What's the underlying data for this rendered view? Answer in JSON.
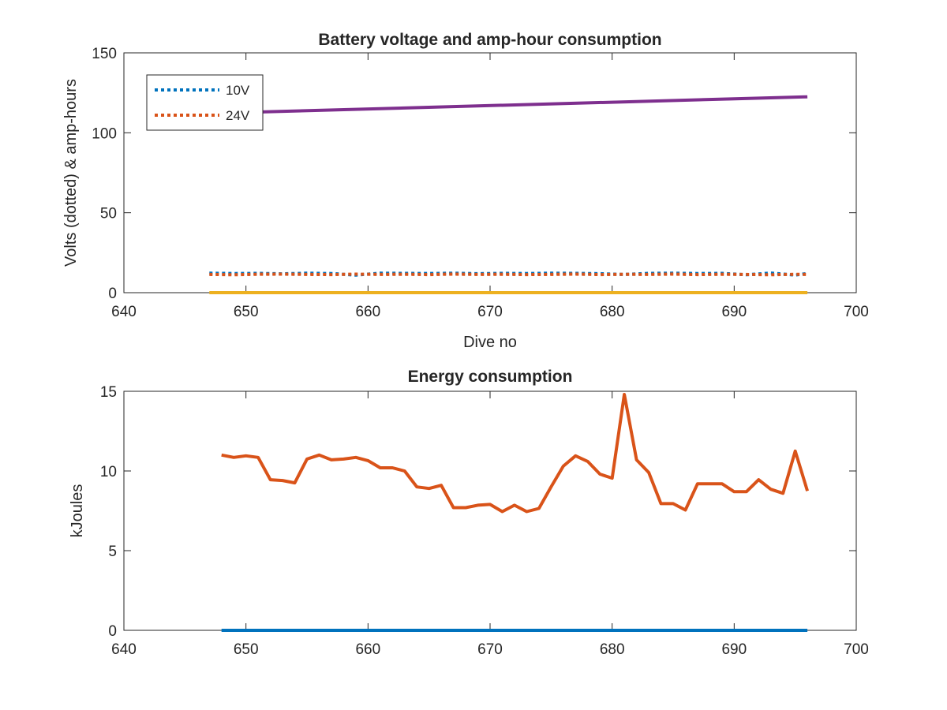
{
  "chart_data": [
    {
      "type": "line",
      "title": "Battery voltage and amp-hour consumption",
      "xlabel": "Dive no",
      "ylabel": "Volts (dotted) & amp-hours",
      "xlim": [
        640,
        700
      ],
      "ylim": [
        0,
        150
      ],
      "xticks": [
        "640",
        "650",
        "660",
        "670",
        "680",
        "690",
        "700"
      ],
      "yticks": [
        "0",
        "50",
        "100",
        "150"
      ],
      "grid": false,
      "legend": "top-left",
      "series": [
        {
          "name": "10V",
          "style": "dotted",
          "color": "#0072BD",
          "x": [
            647,
            649,
            651,
            653,
            655,
            657,
            659,
            661,
            663,
            665,
            667,
            669,
            671,
            673,
            675,
            677,
            679,
            681,
            683,
            685,
            687,
            689,
            691,
            693,
            695,
            696
          ],
          "values": [
            12.2,
            12.0,
            12.1,
            11.8,
            12.2,
            12.0,
            11.0,
            12.2,
            12.1,
            12.0,
            12.2,
            11.9,
            12.1,
            12.0,
            12.2,
            12.1,
            11.9,
            11.4,
            12.1,
            12.2,
            12.0,
            12.1,
            11.2,
            12.3,
            11.0,
            12.0
          ]
        },
        {
          "name": "24V",
          "style": "dotted",
          "color": "#D95319",
          "x": [
            647,
            649,
            651,
            653,
            655,
            657,
            659,
            661,
            663,
            665,
            667,
            669,
            671,
            673,
            675,
            677,
            679,
            681,
            683,
            685,
            687,
            689,
            691,
            693,
            695,
            696
          ],
          "values": [
            11.4,
            11.2,
            11.5,
            11.6,
            11.4,
            11.3,
            11.6,
            11.4,
            11.5,
            11.3,
            11.6,
            11.4,
            11.5,
            11.3,
            11.4,
            11.6,
            11.3,
            11.5,
            11.4,
            11.6,
            11.3,
            11.5,
            11.4,
            11.2,
            11.5,
            11.4
          ]
        },
        {
          "style": "solid",
          "color": "#7E2F8E",
          "x": [
            651,
            696
          ],
          "values": [
            113,
            122.5
          ]
        },
        {
          "style": "solid",
          "color": "#EDB120",
          "x": [
            647,
            696
          ],
          "values": [
            0,
            0
          ]
        }
      ]
    },
    {
      "type": "line",
      "title": "Energy consumption",
      "xlabel": "",
      "ylabel": "kJoules",
      "xlim": [
        640,
        700
      ],
      "ylim": [
        0,
        15
      ],
      "xticks": [
        "640",
        "650",
        "660",
        "670",
        "680",
        "690",
        "700"
      ],
      "yticks": [
        "0",
        "5",
        "10",
        "15"
      ],
      "grid": false,
      "series": [
        {
          "style": "solid",
          "color": "#0072BD",
          "x": [
            648,
            696
          ],
          "values": [
            0,
            0
          ]
        },
        {
          "style": "solid",
          "color": "#D95319",
          "x": [
            648,
            649,
            650,
            651,
            652,
            653,
            654,
            655,
            656,
            657,
            658,
            659,
            660,
            661,
            662,
            663,
            664,
            665,
            666,
            667,
            668,
            669,
            670,
            671,
            672,
            673,
            674,
            675,
            676,
            677,
            678,
            679,
            680,
            681,
            682,
            683,
            684,
            685,
            686,
            687,
            688,
            689,
            690,
            691,
            692,
            693,
            694,
            695,
            696
          ],
          "values": [
            11.0,
            10.85,
            10.95,
            10.85,
            9.45,
            9.4,
            9.25,
            10.75,
            11.0,
            10.7,
            10.75,
            10.85,
            10.65,
            10.2,
            10.2,
            10.0,
            9.0,
            8.9,
            9.1,
            7.7,
            7.7,
            7.85,
            7.9,
            7.45,
            7.85,
            7.45,
            7.65,
            9.0,
            10.3,
            10.95,
            10.6,
            9.8,
            9.55,
            14.8,
            10.7,
            9.9,
            7.95,
            7.95,
            7.55,
            9.2,
            9.2,
            9.2,
            8.7,
            8.7,
            9.45,
            8.85,
            8.6,
            11.25,
            8.75
          ]
        }
      ]
    }
  ]
}
